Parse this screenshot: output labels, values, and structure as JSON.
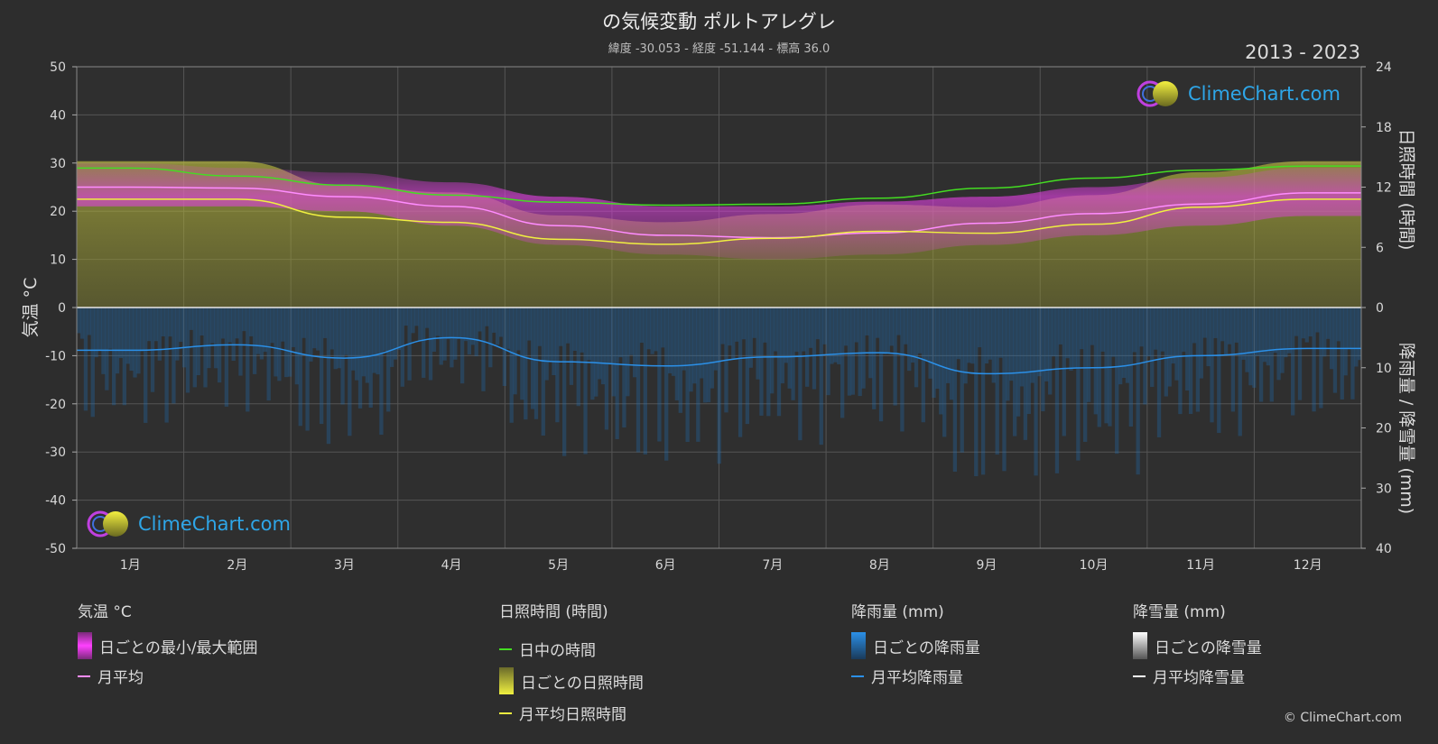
{
  "title": "の気候変動 ポルトアレグレ",
  "subtitle": "緯度 -30.053 - 経度 -51.144 - 標高 36.0",
  "period": "2013 - 2023",
  "logo_text": "ClimeChart.com",
  "copyright": "© ClimeChart.com",
  "legend": {
    "temperature": {
      "title": "気温 °C",
      "range_label": "日ごとの最小/最大範囲",
      "mean_label": "月平均"
    },
    "sunshine": {
      "title": "日照時間 (時間)",
      "daylight_label": "日中の時間",
      "daily_label": "日ごとの日照時間",
      "mean_label": "月平均日照時間"
    },
    "rain": {
      "title": "降雨量 (mm)",
      "daily_label": "日ごとの降雨量",
      "mean_label": "月平均降雨量"
    },
    "snow": {
      "title": "降雪量 (mm)",
      "daily_label": "日ごとの降雪量",
      "mean_label": "月平均降雪量"
    }
  },
  "colors": {
    "background": "#2d2d2d",
    "grid": "#5a5a5a",
    "temp_range": "#e040e0",
    "temp_mean": "#ff8cff",
    "daylight": "#44dd22",
    "sunshine": "#d4d44a",
    "sunshine_mean": "#f0f040",
    "rain": "#1f7fd0",
    "rain_mean": "#2b90e8",
    "snow": "#ffffff"
  },
  "chart_data": {
    "type": "area",
    "categories": [
      "1月",
      "2月",
      "3月",
      "4月",
      "5月",
      "6月",
      "7月",
      "8月",
      "9月",
      "10月",
      "11月",
      "12月"
    ],
    "left_axis": {
      "label": "気温 °C",
      "ticks": [
        50,
        40,
        30,
        20,
        10,
        0,
        -10,
        -20,
        -30,
        -40,
        -50
      ],
      "range": [
        -50,
        50
      ]
    },
    "right_axis_top": {
      "label": "日照時間 (時間)",
      "ticks": [
        24,
        18,
        12,
        6,
        0
      ],
      "range": [
        0,
        24
      ]
    },
    "right_axis_bottom": {
      "label": "降雨量 / 降雪量 (mm)",
      "ticks": [
        0,
        10,
        20,
        30,
        40
      ],
      "range": [
        0,
        40
      ]
    },
    "series": [
      {
        "name": "日中の時間",
        "axis": "hours",
        "values": [
          13.9,
          13.1,
          12.2,
          11.2,
          10.5,
          10.2,
          10.3,
          10.9,
          11.9,
          12.9,
          13.7,
          14.1
        ]
      },
      {
        "name": "月平均",
        "axis": "temp",
        "values": [
          25.0,
          24.8,
          23.0,
          21.0,
          17.0,
          15.0,
          14.5,
          15.5,
          17.5,
          19.5,
          21.5,
          23.8
        ]
      },
      {
        "name": "日ごとの最小/最大範囲 (最大)",
        "axis": "temp",
        "values": [
          30,
          29,
          28,
          26,
          23,
          21,
          21,
          22,
          23,
          25,
          27,
          29
        ]
      },
      {
        "name": "日ごとの最小/最大範囲 (最小)",
        "axis": "temp",
        "values": [
          21,
          21,
          20,
          17,
          13,
          11,
          10,
          11,
          13,
          15,
          17,
          19
        ]
      },
      {
        "name": "月平均日照時間",
        "axis": "hours",
        "values": [
          10.8,
          10.8,
          9.0,
          8.5,
          6.8,
          6.3,
          6.9,
          7.6,
          7.4,
          8.3,
          10.0,
          10.8
        ]
      },
      {
        "name": "月平均降雨量",
        "axis": "mm",
        "values": [
          7.1,
          6.2,
          8.4,
          5.0,
          9.0,
          9.7,
          8.2,
          7.5,
          11.0,
          10.0,
          8.0,
          6.8
        ]
      }
    ]
  }
}
